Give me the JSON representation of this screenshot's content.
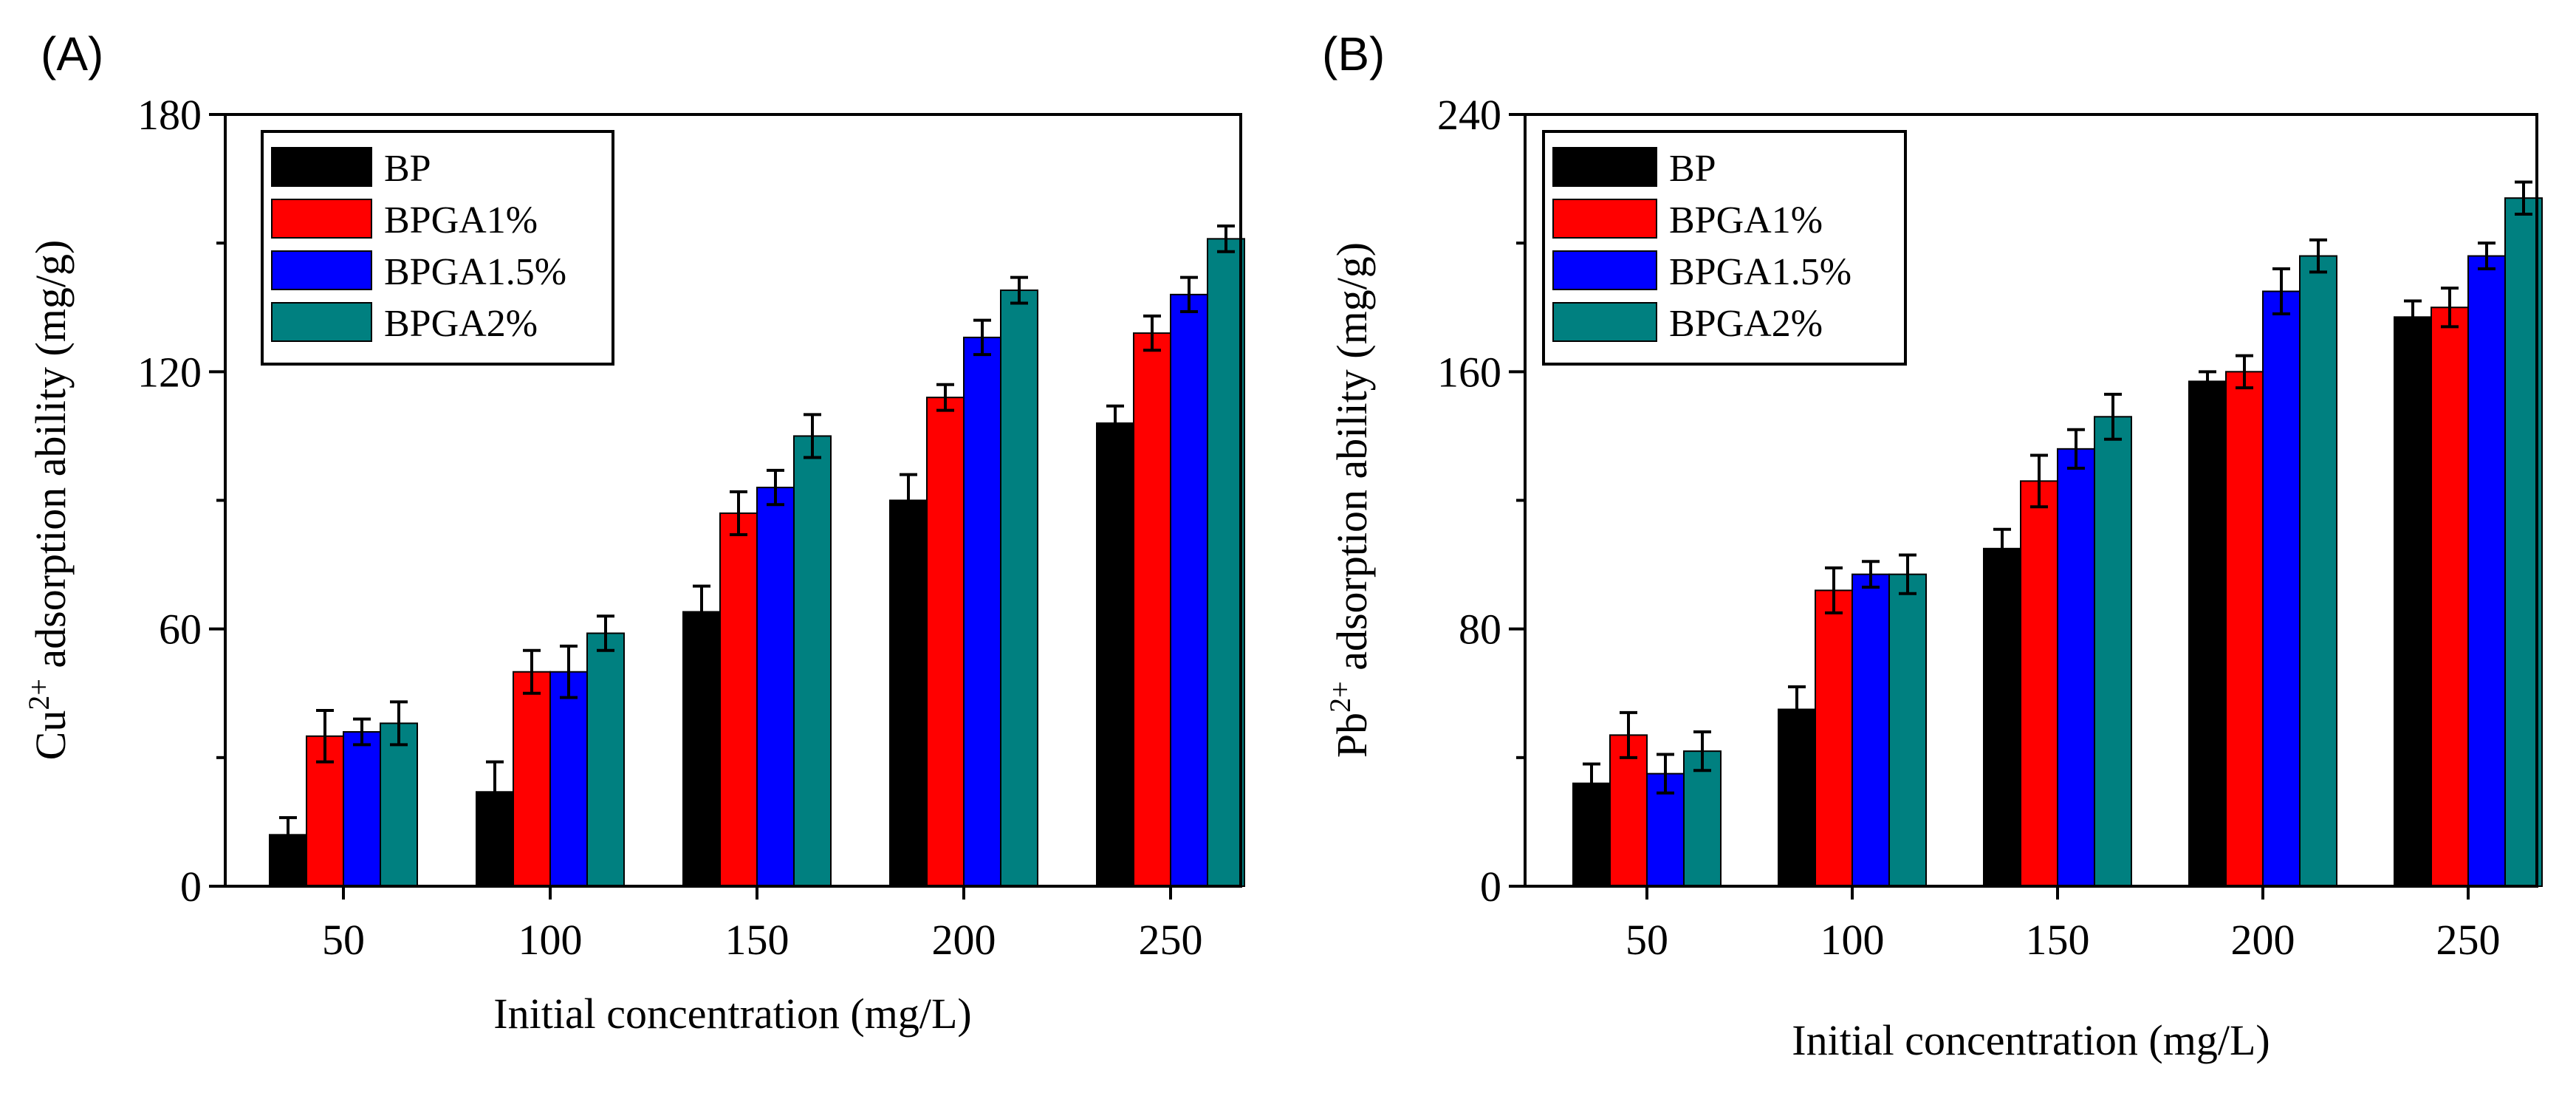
{
  "chart_data": [
    {
      "type": "bar",
      "panel_label": "(A)",
      "categories": [
        "50",
        "100",
        "150",
        "200",
        "250"
      ],
      "xlabel": "Initial concentration (mg/L)",
      "ylabel_prefix": "Cu",
      "ylabel_superscript": "2+",
      "ylabel_suffix": " adsorption ability (mg/g)",
      "ylim": [
        0,
        180
      ],
      "yticks": [
        "0",
        "60",
        "120",
        "180"
      ],
      "legend_position": "top-left",
      "series": [
        {
          "name": "BP",
          "color": "#000000",
          "values": [
            12,
            22,
            64,
            90,
            108
          ],
          "errors": [
            4,
            7,
            6,
            6,
            4
          ]
        },
        {
          "name": "BPGA1%",
          "color": "#ff0000",
          "values": [
            35,
            50,
            87,
            114,
            129
          ],
          "errors": [
            6,
            5,
            5,
            3,
            4
          ]
        },
        {
          "name": "BPGA1.5%",
          "color": "#0000ff",
          "values": [
            36,
            50,
            93,
            128,
            138
          ],
          "errors": [
            3,
            6,
            4,
            4,
            4
          ]
        },
        {
          "name": "BPGA2%",
          "color": "#008080",
          "values": [
            38,
            59,
            105,
            139,
            151
          ],
          "errors": [
            5,
            4,
            5,
            3,
            3
          ]
        }
      ]
    },
    {
      "type": "bar",
      "panel_label": "(B)",
      "categories": [
        "50",
        "100",
        "150",
        "200",
        "250"
      ],
      "xlabel": "Initial concentration (mg/L)",
      "ylabel_prefix": "Pb",
      "ylabel_superscript": "2+",
      "ylabel_suffix": " adsorption ability (mg/g)",
      "ylim": [
        0,
        240
      ],
      "yticks": [
        "0",
        "80",
        "160",
        "240"
      ],
      "legend_position": "top-left",
      "series": [
        {
          "name": "BP",
          "color": "#000000",
          "values": [
            32,
            55,
            105,
            157,
            177
          ],
          "errors": [
            6,
            7,
            6,
            3,
            5
          ]
        },
        {
          "name": "BPGA1%",
          "color": "#ff0000",
          "values": [
            47,
            92,
            126,
            160,
            180
          ],
          "errors": [
            7,
            7,
            8,
            5,
            6
          ]
        },
        {
          "name": "BPGA1.5%",
          "color": "#0000ff",
          "values": [
            35,
            97,
            136,
            185,
            196
          ],
          "errors": [
            6,
            4,
            6,
            7,
            4
          ]
        },
        {
          "name": "BPGA2%",
          "color": "#008080",
          "values": [
            42,
            97,
            146,
            196,
            214
          ],
          "errors": [
            6,
            6,
            7,
            5,
            5
          ]
        }
      ]
    }
  ]
}
